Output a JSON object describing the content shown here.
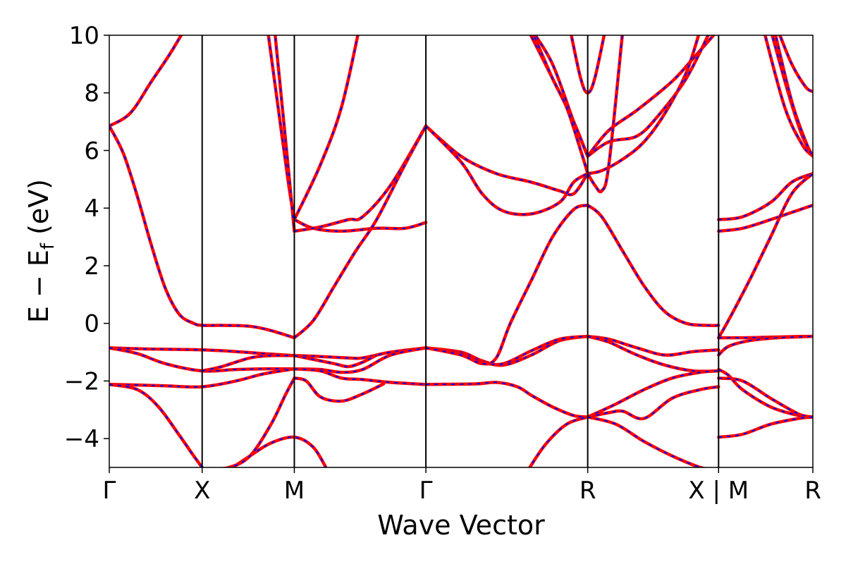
{
  "chart_data": {
    "type": "line",
    "xlabel": "Wave Vector",
    "ylabel_main": "E − E",
    "ylabel_sub": "f",
    "ylabel_unit": " (eV)",
    "ylim": [
      -5,
      10
    ],
    "yticks": [
      -4,
      -2,
      0,
      2,
      4,
      6,
      8,
      10
    ],
    "ytick_labels": [
      "−4",
      "−2",
      "0",
      "2",
      "4",
      "6",
      "8",
      "10"
    ],
    "xlim": [
      0,
      1
    ],
    "kpoints": [
      {
        "label": "Γ",
        "x": 0.0
      },
      {
        "label": "X",
        "x": 0.132
      },
      {
        "label": "M",
        "x": 0.263
      },
      {
        "label": "Γ",
        "x": 0.45
      },
      {
        "label": "R",
        "x": 0.68
      },
      {
        "label": "X | M",
        "x": 0.866
      },
      {
        "label": "R",
        "x": 1.0
      }
    ],
    "line_colors": {
      "solid": "#ff0000",
      "dashed": "#0000ff"
    },
    "series": [
      {
        "x": [
          0.0,
          0.03,
          0.06,
          0.09,
          0.12,
          0.132
        ],
        "y": [
          6.85,
          7.3,
          8.4,
          9.5,
          10.8,
          11.5
        ]
      },
      {
        "x": [
          0.0,
          0.02,
          0.04,
          0.06,
          0.08,
          0.1,
          0.12,
          0.132,
          0.16,
          0.2,
          0.23,
          0.263
        ],
        "y": [
          6.85,
          5.9,
          4.4,
          2.7,
          1.2,
          0.3,
          0.0,
          -0.07,
          -0.07,
          -0.1,
          -0.25,
          -0.5
        ]
      },
      {
        "x": [
          0.0,
          0.04,
          0.08,
          0.132,
          0.18,
          0.22,
          0.263
        ],
        "y": [
          -0.85,
          -0.88,
          -0.9,
          -0.92,
          -0.98,
          -1.05,
          -1.12
        ]
      },
      {
        "x": [
          0.0,
          0.04,
          0.08,
          0.132,
          0.18,
          0.22,
          0.263
        ],
        "y": [
          -0.85,
          -1.05,
          -1.4,
          -1.65,
          -1.6,
          -1.58,
          -1.58
        ]
      },
      {
        "x": [
          0.0,
          0.04,
          0.08,
          0.132,
          0.18,
          0.22,
          0.263
        ],
        "y": [
          -2.12,
          -2.14,
          -2.17,
          -2.2,
          -2.0,
          -1.75,
          -1.58
        ]
      },
      {
        "x": [
          0.0,
          0.04,
          0.07,
          0.1,
          0.12,
          0.132
        ],
        "y": [
          -2.12,
          -2.3,
          -2.9,
          -3.9,
          -4.6,
          -5.0
        ]
      },
      {
        "x": [
          0.132,
          0.16,
          0.2,
          0.23,
          0.263
        ],
        "y": [
          -1.65,
          -1.5,
          -1.2,
          -1.12,
          -1.12
        ]
      },
      {
        "x": [
          0.17,
          0.2,
          0.23,
          0.263,
          0.29,
          0.31
        ],
        "y": [
          -5.1,
          -4.6,
          -4.15,
          -3.95,
          -4.3,
          -5.1
        ]
      },
      {
        "x": [
          0.13,
          0.17,
          0.2,
          0.23,
          0.25,
          0.263
        ],
        "y": [
          -5.1,
          -5.0,
          -4.6,
          -3.5,
          -2.5,
          -1.9
        ]
      },
      {
        "x": [
          0.225,
          0.24,
          0.255,
          0.263
        ],
        "y": [
          10.2,
          7.5,
          4.8,
          3.6
        ]
      },
      {
        "x": [
          0.235,
          0.25,
          0.263
        ],
        "y": [
          10.2,
          6.5,
          3.2
        ]
      },
      {
        "x": [
          0.263,
          0.29,
          0.33,
          0.38,
          0.42,
          0.45
        ],
        "y": [
          3.6,
          3.3,
          3.2,
          3.3,
          3.3,
          3.5
        ]
      },
      {
        "x": [
          0.263,
          0.3,
          0.34,
          0.36,
          0.4,
          0.45
        ],
        "y": [
          3.2,
          3.35,
          3.6,
          3.7,
          4.8,
          6.85
        ]
      },
      {
        "x": [
          0.263,
          0.29,
          0.32,
          0.35,
          0.38,
          0.42,
          0.45
        ],
        "y": [
          -0.5,
          0.1,
          1.3,
          2.5,
          3.6,
          5.5,
          6.85
        ]
      },
      {
        "x": [
          0.263,
          0.3,
          0.33,
          0.355
        ],
        "y": [
          3.6,
          5.5,
          7.5,
          10.2
        ]
      },
      {
        "x": [
          0.263,
          0.3,
          0.34,
          0.36,
          0.4,
          0.45
        ],
        "y": [
          -1.12,
          -1.15,
          -1.2,
          -1.2,
          -1.0,
          -0.85
        ]
      },
      {
        "x": [
          0.263,
          0.3,
          0.33,
          0.36,
          0.4,
          0.45
        ],
        "y": [
          -1.58,
          -1.6,
          -1.7,
          -1.6,
          -1.1,
          -0.85
        ]
      },
      {
        "x": [
          0.263,
          0.3,
          0.33,
          0.36,
          0.4,
          0.45
        ],
        "y": [
          -1.58,
          -1.65,
          -1.9,
          -1.95,
          -2.05,
          -2.12
        ]
      },
      {
        "x": [
          0.263,
          0.28,
          0.3,
          0.33,
          0.36,
          0.39
        ],
        "y": [
          -1.9,
          -2.0,
          -2.55,
          -2.7,
          -2.45,
          -2.1
        ]
      },
      {
        "x": [
          0.263,
          0.29,
          0.32,
          0.34,
          0.36,
          0.38
        ],
        "y": [
          -1.12,
          -1.25,
          -1.4,
          -1.5,
          -1.35,
          -1.1
        ]
      },
      {
        "x": [
          0.45,
          0.5,
          0.55,
          0.6,
          0.64,
          0.66,
          0.68
        ],
        "y": [
          6.85,
          5.8,
          5.2,
          4.9,
          4.6,
          4.5,
          5.2
        ]
      },
      {
        "x": [
          0.45,
          0.5,
          0.53,
          0.56,
          0.6,
          0.64,
          0.66,
          0.68
        ],
        "y": [
          6.85,
          5.6,
          4.5,
          3.9,
          3.8,
          4.2,
          4.9,
          5.2
        ]
      },
      {
        "x": [
          0.45,
          0.5,
          0.53,
          0.56,
          0.6,
          0.64,
          0.68
        ],
        "y": [
          -0.85,
          -1.0,
          -1.3,
          -1.45,
          -1.1,
          -0.6,
          -0.45
        ]
      },
      {
        "x": [
          0.45,
          0.5,
          0.53,
          0.56,
          0.6,
          0.64,
          0.68
        ],
        "y": [
          -0.85,
          -1.05,
          -1.35,
          -1.4,
          -0.95,
          -0.55,
          -0.45
        ]
      },
      {
        "x": [
          0.45,
          0.52,
          0.55,
          0.58,
          0.6,
          0.63,
          0.66,
          0.68
        ],
        "y": [
          -2.12,
          -2.1,
          -2.05,
          -2.2,
          -2.5,
          -2.9,
          -3.2,
          -3.25
        ]
      },
      {
        "x": [
          0.45,
          0.5,
          0.53,
          0.55,
          0.57,
          0.6,
          0.63,
          0.66,
          0.68
        ],
        "y": [
          -0.85,
          -1.1,
          -1.4,
          -1.2,
          0.0,
          1.5,
          3.0,
          3.95,
          4.1
        ]
      },
      {
        "x": [
          0.595,
          0.62,
          0.65,
          0.68
        ],
        "y": [
          -5.1,
          -4.2,
          -3.5,
          -3.25
        ]
      },
      {
        "x": [
          0.595,
          0.63,
          0.66,
          0.68
        ],
        "y": [
          10.2,
          8.5,
          7.0,
          5.8
        ]
      },
      {
        "x": [
          0.6,
          0.63,
          0.66,
          0.68
        ],
        "y": [
          10.2,
          9.0,
          7.0,
          5.8
        ]
      },
      {
        "x": [
          0.6,
          0.63,
          0.65,
          0.67,
          0.68
        ],
        "y": [
          10.2,
          8.5,
          7.5,
          6.0,
          5.2
        ]
      },
      {
        "x": [
          0.655,
          0.67,
          0.68,
          0.69,
          0.705
        ],
        "y": [
          10.2,
          8.5,
          8.0,
          8.5,
          10.2
        ]
      },
      {
        "x": [
          0.68,
          0.71,
          0.75,
          0.8,
          0.83,
          0.866
        ],
        "y": [
          5.8,
          6.7,
          7.4,
          8.4,
          9.2,
          10.2
        ]
      },
      {
        "x": [
          0.68,
          0.71,
          0.75,
          0.78,
          0.82,
          0.855
        ],
        "y": [
          5.8,
          6.3,
          6.5,
          7.2,
          8.5,
          10.2
        ]
      },
      {
        "x": [
          0.68,
          0.7,
          0.73,
          0.76,
          0.79,
          0.82,
          0.84
        ],
        "y": [
          5.2,
          5.3,
          5.7,
          6.3,
          7.3,
          8.7,
          10.2
        ]
      },
      {
        "x": [
          0.68,
          0.69,
          0.7,
          0.71,
          0.73
        ],
        "y": [
          5.2,
          4.8,
          4.6,
          5.5,
          10.2
        ]
      },
      {
        "x": [
          0.68,
          0.7,
          0.73,
          0.76,
          0.79,
          0.82,
          0.85,
          0.866
        ],
        "y": [
          4.1,
          3.7,
          2.5,
          1.3,
          0.4,
          0.0,
          -0.07,
          -0.07
        ]
      },
      {
        "x": [
          0.68,
          0.71,
          0.75,
          0.79,
          0.83,
          0.866
        ],
        "y": [
          -0.45,
          -0.55,
          -0.85,
          -1.1,
          -0.98,
          -0.92
        ]
      },
      {
        "x": [
          0.68,
          0.71,
          0.75,
          0.79,
          0.83,
          0.866
        ],
        "y": [
          -0.45,
          -0.65,
          -1.1,
          -1.45,
          -1.65,
          -1.65
        ]
      },
      {
        "x": [
          0.68,
          0.72,
          0.76,
          0.8,
          0.84,
          0.866
        ],
        "y": [
          -3.25,
          -2.8,
          -2.3,
          -1.9,
          -1.7,
          -1.65
        ]
      },
      {
        "x": [
          0.68,
          0.71,
          0.73,
          0.76,
          0.8,
          0.84,
          0.866
        ],
        "y": [
          -3.25,
          -3.1,
          -3.05,
          -3.3,
          -2.6,
          -2.3,
          -2.2
        ]
      },
      {
        "x": [
          0.68,
          0.72,
          0.76,
          0.8,
          0.84,
          0.866
        ],
        "y": [
          -3.25,
          -3.5,
          -4.1,
          -4.6,
          -5.0,
          -5.1
        ]
      },
      {
        "x": [
          0.866,
          0.9,
          0.94,
          0.97,
          1.0
        ],
        "y": [
          3.6,
          3.7,
          4.2,
          4.9,
          5.2
        ]
      },
      {
        "x": [
          0.866,
          0.9,
          0.94,
          0.97,
          1.0
        ],
        "y": [
          3.2,
          3.3,
          3.6,
          3.85,
          4.1
        ]
      },
      {
        "x": [
          0.866,
          0.88,
          0.91,
          0.94,
          0.97,
          1.0
        ],
        "y": [
          -0.5,
          0.1,
          1.5,
          3.0,
          4.5,
          5.2
        ]
      },
      {
        "x": [
          0.866,
          0.9,
          0.94,
          0.97,
          1.0
        ],
        "y": [
          -0.5,
          -0.5,
          -0.48,
          -0.46,
          -0.45
        ]
      },
      {
        "x": [
          0.866,
          0.88,
          0.91,
          0.95,
          0.98,
          1.0
        ],
        "y": [
          -1.1,
          -0.8,
          -0.6,
          -0.5,
          -0.47,
          -0.45
        ]
      },
      {
        "x": [
          0.866,
          0.88,
          0.9,
          0.94,
          0.98,
          1.0
        ],
        "y": [
          -1.6,
          -1.8,
          -2.3,
          -2.9,
          -3.2,
          -3.25
        ]
      },
      {
        "x": [
          0.866,
          0.9,
          0.94,
          0.98,
          1.0
        ],
        "y": [
          -1.9,
          -2.0,
          -2.6,
          -3.15,
          -3.25
        ]
      },
      {
        "x": [
          0.866,
          0.9,
          0.94,
          0.98,
          1.0
        ],
        "y": [
          -3.95,
          -3.85,
          -3.5,
          -3.3,
          -3.25
        ]
      },
      {
        "x": [
          0.93,
          0.96,
          0.985,
          1.0
        ],
        "y": [
          10.2,
          7.5,
          6.2,
          5.8
        ]
      },
      {
        "x": [
          0.94,
          0.965,
          0.985,
          1.0
        ],
        "y": [
          10.2,
          8.0,
          6.5,
          5.8
        ]
      },
      {
        "x": [
          0.95,
          0.97,
          0.99,
          1.0
        ],
        "y": [
          10.2,
          9.0,
          8.2,
          8.05
        ]
      },
      {
        "x": [
          0.945,
          0.97,
          0.99,
          1.0
        ],
        "y": [
          10.2,
          7.7,
          6.3,
          5.8
        ]
      }
    ]
  }
}
